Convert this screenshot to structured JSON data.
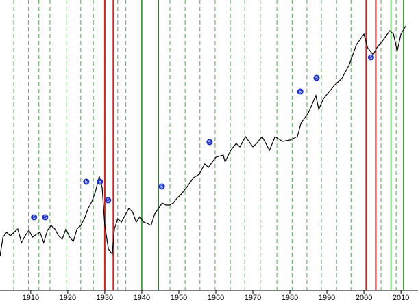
{
  "chart_data": {
    "type": "line",
    "xlim": [
      1901.7,
      2014.6
    ],
    "ylim": [
      0,
      425
    ],
    "xticks": [
      1910,
      1920,
      1930,
      1940,
      1950,
      1960,
      1970,
      1980,
      1990,
      2000,
      2010
    ],
    "series": [
      {
        "color": "#000000",
        "x": [
          1901.7,
          1902.5,
          1903.5,
          1904.5,
          1905.5,
          1906.5,
          1907.5,
          1908.5,
          1909.5,
          1910.5,
          1911.5,
          1912.5,
          1913.5,
          1914.5,
          1915.5,
          1916.5,
          1917.5,
          1918.5,
          1919.5,
          1920.5,
          1921.5,
          1922.5,
          1923.5,
          1924.5,
          1925.5,
          1926.5,
          1927.5,
          1928.5,
          1929.3,
          1930,
          1931,
          1932,
          1932.6,
          1933.5,
          1934.5,
          1935.5,
          1936.5,
          1937.5,
          1938.5,
          1939.5,
          1940.5,
          1941.5,
          1942.5,
          1943.5,
          1944.5,
          1945.5,
          1946.5,
          1947.5,
          1948.5,
          1949.5,
          1950.5,
          1952,
          1954,
          1955.5,
          1957,
          1958,
          1960,
          1962,
          1962.5,
          1964,
          1965.5,
          1966.5,
          1968,
          1970,
          1971,
          1972.5,
          1974.5,
          1976,
          1978,
          1980,
          1982,
          1983,
          1985,
          1987,
          1987.8,
          1989,
          1990.5,
          1992,
          1994,
          1996,
          1998,
          2000,
          2001,
          2002.5,
          2003.5,
          2005,
          2007,
          2008,
          2009,
          2010,
          2011.3
        ],
        "values": [
          50,
          78,
          85,
          80,
          85,
          90,
          70,
          80,
          88,
          78,
          82,
          85,
          70,
          88,
          95,
          90,
          80,
          75,
          90,
          78,
          72,
          90,
          95,
          105,
          120,
          130,
          145,
          167,
          150,
          95,
          60,
          53,
          90,
          105,
          100,
          110,
          120,
          115,
          100,
          108,
          100,
          98,
          95,
          112,
          120,
          128,
          125,
          125,
          128,
          135,
          140,
          150,
          165,
          170,
          185,
          180,
          195,
          198,
          188,
          205,
          215,
          210,
          225,
          210,
          215,
          225,
          205,
          225,
          218,
          220,
          225,
          245,
          260,
          285,
          265,
          280,
          290,
          300,
          310,
          330,
          360,
          375,
          355,
          345,
          355,
          365,
          380,
          375,
          350,
          375,
          387
        ]
      }
    ],
    "red_lines": [
      1930,
      1932.3,
      2000.6,
      2003.2
    ],
    "green_lines": [
      1940,
      1944.5,
      2007.3,
      2010.7
    ],
    "dashed_lines": [
      1905.4,
      1909.4,
      1912.2,
      1915.2,
      1919.6,
      1923.5,
      1926.9,
      1933.5,
      1935.7,
      1947.6,
      1951.7,
      1955.7,
      1959.8,
      1963.9,
      1967.8,
      1972.0,
      1976.5,
      1980.6,
      1984.6,
      1988.5,
      1992.6,
      1996.5,
      2004.6,
      2008.7
    ],
    "markers": [
      {
        "label": "5",
        "x": 1910.9,
        "y": 107
      },
      {
        "label": "5",
        "x": 1913.9,
        "y": 107
      },
      {
        "label": "5",
        "x": 1925.0,
        "y": 159
      },
      {
        "label": "5",
        "x": 1928.7,
        "y": 159
      },
      {
        "label": "5",
        "x": 1930.9,
        "y": 132
      },
      {
        "label": "5",
        "x": 1945.4,
        "y": 152
      },
      {
        "label": "5",
        "x": 1958.3,
        "y": 217
      },
      {
        "label": "5",
        "x": 1982.8,
        "y": 291
      },
      {
        "label": "5",
        "x": 1987.2,
        "y": 311
      },
      {
        "label": "5",
        "x": 2001.9,
        "y": 341
      }
    ]
  }
}
